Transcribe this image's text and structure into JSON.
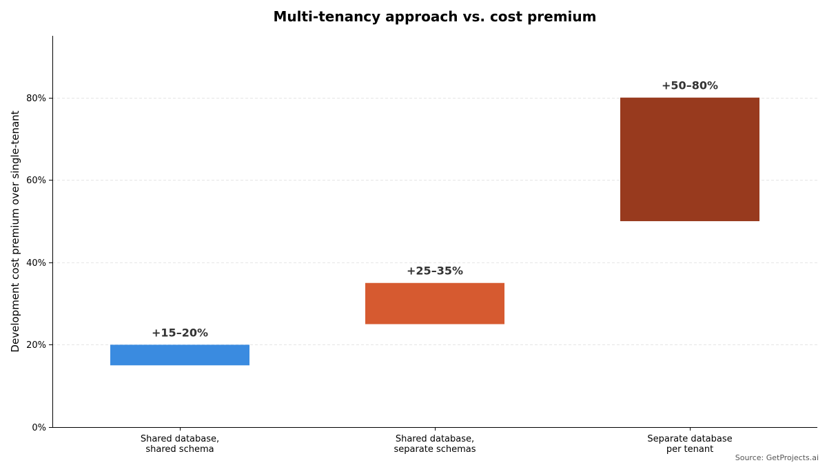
{
  "chart_data": {
    "type": "bar",
    "subtype": "floating-range",
    "title": "Multi-tenancy approach vs. cost premium",
    "xlabel": "",
    "ylabel": "Development cost premium over single-tenant",
    "ylim": [
      0,
      95
    ],
    "yticks": [
      0,
      20,
      40,
      60,
      80
    ],
    "ytick_labels": [
      "0%",
      "20%",
      "40%",
      "60%",
      "80%"
    ],
    "grid": true,
    "categories": [
      [
        "Shared database,",
        "shared schema"
      ],
      [
        "Shared database,",
        "separate schemas"
      ],
      [
        "Separate database",
        "per tenant"
      ]
    ],
    "ranges": [
      {
        "low": 15,
        "high": 20,
        "label": "+15–20%",
        "color": "#3a8be0"
      },
      {
        "low": 25,
        "high": 35,
        "label": "+25–35%",
        "color": "#d65a30"
      },
      {
        "low": 50,
        "high": 80,
        "label": "+50–80%",
        "color": "#983a1e"
      }
    ],
    "source": "Source: GetProjects.ai"
  }
}
